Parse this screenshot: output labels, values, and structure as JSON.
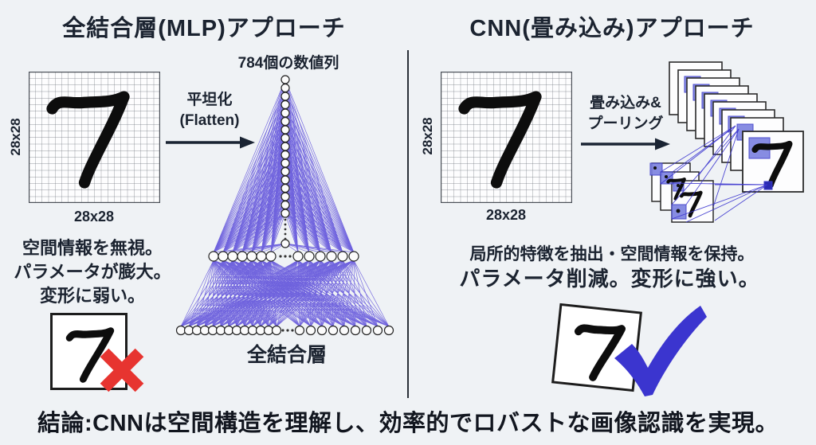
{
  "colors": {
    "background": "#eff2f5",
    "ink": "#1b2330",
    "network_blue": "#4533d6",
    "patch_blue": "#7b80e0",
    "patch_border": "#3a3ac8",
    "cross_red": "#e73430",
    "check_blue": "#3b35cf",
    "grid_line": "#70757e"
  },
  "left": {
    "title": "全結合層(MLP)アプローチ",
    "grid": {
      "digit": "7",
      "side_label": "28x28",
      "bottom_label": "28x28"
    },
    "arrow": {
      "line1": "平坦化",
      "line2": "(Flatten)"
    },
    "network": {
      "top_label": "784個の数値列",
      "bottom_label": "全結合層",
      "column_nodes": 17,
      "column_tail_nodes": 1,
      "hidden_nodes_visible": 13,
      "output_nodes_visible": 22
    },
    "captions": [
      "空間情報を無視。",
      "パラメータが膨大。",
      "変形に弱い。"
    ],
    "verdict": {
      "digit": "7",
      "icon": "red-cross"
    }
  },
  "right": {
    "title": "CNN(畳み込み)アプローチ",
    "grid": {
      "digit": "7",
      "side_label": "28x28",
      "bottom_label": "28x28"
    },
    "arrow": {
      "line1": "畳み込み&",
      "line2": "プーリング"
    },
    "stack": {
      "feature_maps": 8,
      "pooled_maps": 3,
      "digit": "7"
    },
    "captions": [
      "局所的特徴を抽出・空間情報を保持。",
      "パラメータ削減。変形に強い。"
    ],
    "verdict": {
      "digit": "7",
      "icon": "blue-check"
    }
  },
  "footer": {
    "conclusion": "結論:CNNは空間構造を理解し、効率的でロバストな画像認識を実現。"
  }
}
